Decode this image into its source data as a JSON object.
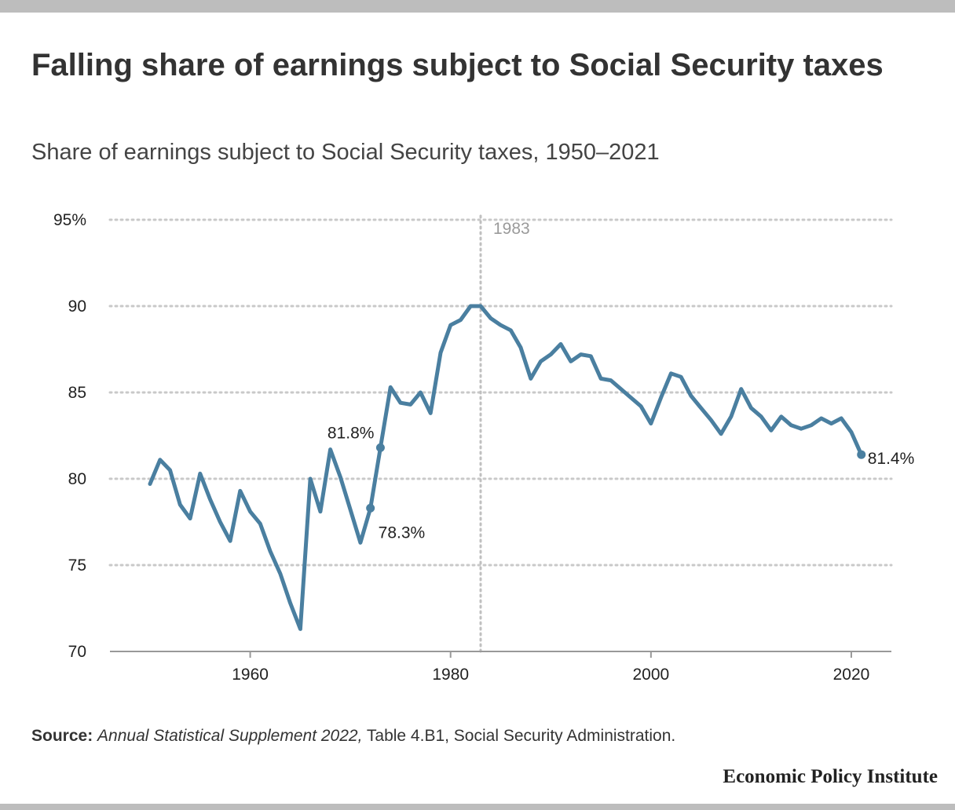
{
  "title": "Falling share of earnings subject to Social Security taxes",
  "subtitle": "Share of earnings subject to Social Security taxes, 1950–2021",
  "source": {
    "label": "Source:",
    "publication": "Annual Statistical Supplement 2022,",
    "rest": "Table 4.B1, Social Security Administration."
  },
  "brand": "Economic Policy Institute",
  "colors": {
    "line": "#4a7fa0",
    "grid": "#c9c9c9",
    "marker_line": "#c0c0c0",
    "axis": "#999999"
  },
  "chart_data": {
    "type": "line",
    "title": "Share of earnings subject to Social Security taxes, 1950–2021",
    "xlabel": "",
    "ylabel": "",
    "xlim": [
      1946,
      2024
    ],
    "ylim": [
      70,
      95
    ],
    "x_ticks": [
      1960,
      1980,
      2000,
      2020
    ],
    "y_ticks": [
      {
        "value": 70,
        "label": "70"
      },
      {
        "value": 75,
        "label": "75"
      },
      {
        "value": 80,
        "label": "80"
      },
      {
        "value": 85,
        "label": "85"
      },
      {
        "value": 90,
        "label": "90"
      },
      {
        "value": 95,
        "label": "95%"
      }
    ],
    "grid": "horizontal dotted",
    "vertical_marker": {
      "x": 1983,
      "label": "1983"
    },
    "series": [
      {
        "x": [
          1950,
          1951,
          1952,
          1953,
          1954,
          1955,
          1956,
          1957,
          1958,
          1959,
          1960,
          1961,
          1962,
          1963,
          1964,
          1965,
          1966,
          1967,
          1968,
          1969,
          1970,
          1971,
          1972,
          1973,
          1974,
          1975,
          1976,
          1977,
          1978,
          1979,
          1980,
          1981,
          1982,
          1983,
          1984,
          1985,
          1986,
          1987,
          1988,
          1989,
          1990,
          1991,
          1992,
          1993,
          1994,
          1995,
          1996,
          1997,
          1998,
          1999,
          2000,
          2001,
          2002,
          2003,
          2004,
          2005,
          2006,
          2007,
          2008,
          2009,
          2010,
          2011,
          2012,
          2013,
          2014,
          2015,
          2016,
          2017,
          2018,
          2019,
          2020,
          2021
        ],
        "values": [
          79.7,
          81.1,
          80.5,
          78.5,
          77.7,
          80.3,
          78.8,
          77.5,
          76.4,
          79.3,
          78.1,
          77.4,
          75.8,
          74.5,
          72.8,
          71.3,
          80.0,
          78.1,
          81.7,
          80.1,
          78.2,
          76.3,
          78.3,
          81.8,
          85.3,
          84.4,
          84.3,
          85.0,
          83.8,
          87.3,
          88.9,
          89.2,
          90.0,
          90.0,
          89.3,
          88.9,
          88.6,
          87.6,
          85.8,
          86.8,
          87.2,
          87.8,
          86.8,
          87.2,
          87.1,
          85.8,
          85.7,
          85.2,
          84.7,
          84.2,
          83.2,
          84.7,
          86.1,
          85.9,
          84.8,
          84.1,
          83.4,
          82.6,
          83.6,
          85.2,
          84.1,
          83.6,
          82.8,
          83.6,
          83.1,
          82.9,
          83.1,
          83.5,
          83.2,
          83.5,
          82.7,
          81.4
        ]
      }
    ],
    "annotations": [
      {
        "x": 1972,
        "y": 78.3,
        "label": "78.3%"
      },
      {
        "x": 1973,
        "y": 81.8,
        "label": "81.8%"
      },
      {
        "x": 2021,
        "y": 81.4,
        "label": "81.4%"
      }
    ]
  }
}
